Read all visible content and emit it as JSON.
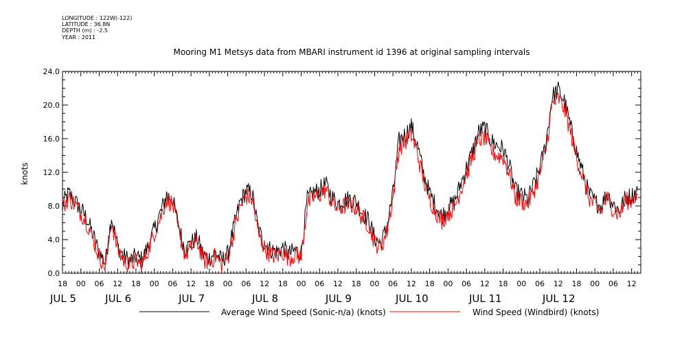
{
  "metadata": {
    "longitude": "LONGITUDE : 122W(-122)",
    "latitude": "LATITUDE : 36.8N",
    "depth": "DEPTH (m) : -2.5",
    "year": "YEAR : 2011"
  },
  "chart_data": {
    "type": "line",
    "title": "Mooring M1 Metsys data from MBARI instrument id 1396 at original sampling intervals",
    "ylabel": "knots",
    "xlabel": "",
    "ylim": [
      0,
      24
    ],
    "y_ticks": [
      "0.0",
      "4.0",
      "8.0",
      "12.0",
      "16.0",
      "20.0",
      "24.0"
    ],
    "x_unit": "hours since JUL 4 18:00 (2011)",
    "xlim": [
      0,
      189
    ],
    "x_hour_ticks": [
      {
        "h": 0,
        "label": "18"
      },
      {
        "h": 6,
        "label": "00"
      },
      {
        "h": 12,
        "label": "06"
      },
      {
        "h": 18,
        "label": "12"
      },
      {
        "h": 24,
        "label": "18"
      },
      {
        "h": 30,
        "label": "00"
      },
      {
        "h": 36,
        "label": "06"
      },
      {
        "h": 42,
        "label": "12"
      },
      {
        "h": 48,
        "label": "18"
      },
      {
        "h": 54,
        "label": "00"
      },
      {
        "h": 60,
        "label": "06"
      },
      {
        "h": 66,
        "label": "12"
      },
      {
        "h": 72,
        "label": "18"
      },
      {
        "h": 78,
        "label": "00"
      },
      {
        "h": 84,
        "label": "06"
      },
      {
        "h": 90,
        "label": "12"
      },
      {
        "h": 96,
        "label": "18"
      },
      {
        "h": 102,
        "label": "00"
      },
      {
        "h": 108,
        "label": "06"
      },
      {
        "h": 114,
        "label": "12"
      },
      {
        "h": 120,
        "label": "18"
      },
      {
        "h": 126,
        "label": "00"
      },
      {
        "h": 132,
        "label": "06"
      },
      {
        "h": 138,
        "label": "12"
      },
      {
        "h": 144,
        "label": "18"
      },
      {
        "h": 150,
        "label": "00"
      },
      {
        "h": 156,
        "label": "06"
      },
      {
        "h": 162,
        "label": "12"
      },
      {
        "h": 168,
        "label": "18"
      },
      {
        "h": 174,
        "label": "00"
      },
      {
        "h": 180,
        "label": "06"
      },
      {
        "h": 186,
        "label": "12"
      }
    ],
    "x_day_labels": [
      {
        "h": 0,
        "label": "JUL  5"
      },
      {
        "h": 18,
        "label": "JUL  6"
      },
      {
        "h": 42,
        "label": "JUL  7"
      },
      {
        "h": 66,
        "label": "JUL  8"
      },
      {
        "h": 90,
        "label": "JUL  9"
      },
      {
        "h": 114,
        "label": "JUL 10"
      },
      {
        "h": 138,
        "label": "JUL 11"
      },
      {
        "h": 162,
        "label": "JUL 12"
      }
    ],
    "series": [
      {
        "name": "Average Wind Speed (Sonic-n/a) (knots)",
        "color": "#000000",
        "x": [
          0,
          2,
          4,
          6,
          8,
          10,
          12,
          14,
          16,
          18,
          20,
          22,
          24,
          26,
          28,
          30,
          32,
          34,
          36,
          38,
          40,
          42,
          44,
          46,
          48,
          50,
          52,
          54,
          56,
          58,
          60,
          62,
          64,
          66,
          68,
          70,
          72,
          74,
          76,
          78,
          80,
          82,
          84,
          86,
          88,
          90,
          92,
          94,
          96,
          98,
          100,
          102,
          104,
          106,
          108,
          110,
          112,
          114,
          116,
          118,
          120,
          122,
          124,
          126,
          128,
          130,
          132,
          134,
          136,
          138,
          140,
          142,
          144,
          146,
          148,
          150,
          152,
          154,
          156,
          158,
          160,
          162,
          164,
          166,
          168,
          170,
          172,
          174,
          176,
          178,
          180,
          182,
          184,
          186,
          188
        ],
        "y": [
          8.2,
          9.5,
          8.6,
          7.6,
          6.5,
          4.5,
          2.5,
          1.2,
          6.8,
          3.2,
          2.0,
          1.5,
          2.0,
          1.6,
          3.2,
          5.2,
          7.2,
          9.3,
          8.8,
          5.5,
          2.8,
          3.6,
          4.2,
          2.2,
          1.8,
          2.5,
          1.5,
          2.3,
          5.5,
          8.4,
          9.8,
          9.5,
          5.2,
          3.5,
          2.8,
          2.6,
          3.0,
          2.3,
          2.7,
          2.5,
          8.8,
          9.6,
          9.9,
          10.6,
          9.1,
          8.3,
          8.7,
          8.9,
          8.5,
          7.2,
          6.3,
          4.2,
          3.5,
          5.5,
          9.5,
          15.8,
          16.5,
          17.5,
          15.2,
          11.8,
          9.5,
          8.0,
          6.8,
          7.8,
          8.4,
          10.5,
          12.5,
          14.5,
          16.8,
          17.3,
          15.8,
          15.2,
          14.8,
          12.8,
          9.8,
          9.3,
          8.8,
          10.5,
          12.5,
          15.5,
          21.0,
          21.8,
          20.5,
          17.5,
          14.5,
          12.0,
          9.5,
          8.5,
          8.0,
          9.5,
          8.2,
          7.5,
          9.0,
          9.2,
          9.8
        ]
      },
      {
        "name": "Wind Speed (Windbird) (knots)",
        "color": "#ff0000",
        "x": [
          0,
          2,
          4,
          6,
          8,
          10,
          12,
          14,
          16,
          18,
          20,
          22,
          24,
          26,
          28,
          30,
          32,
          34,
          36,
          38,
          40,
          42,
          44,
          46,
          48,
          50,
          52,
          54,
          56,
          58,
          60,
          62,
          64,
          66,
          68,
          70,
          72,
          74,
          76,
          78,
          80,
          82,
          84,
          86,
          88,
          90,
          92,
          94,
          96,
          98,
          100,
          102,
          104,
          106,
          108,
          110,
          112,
          114,
          116,
          118,
          120,
          122,
          124,
          126,
          128,
          130,
          132,
          134,
          136,
          138,
          140,
          142,
          144,
          146,
          148,
          150,
          152,
          154,
          156,
          158,
          160,
          162,
          164,
          166,
          168,
          170,
          172,
          174,
          176,
          178,
          180,
          182,
          184,
          186,
          188
        ],
        "y": [
          7.8,
          9.0,
          8.2,
          7.2,
          6.0,
          4.0,
          2.0,
          0.8,
          6.2,
          2.8,
          1.5,
          1.0,
          1.5,
          1.1,
          2.8,
          4.8,
          6.6,
          8.8,
          8.2,
          5.0,
          2.2,
          3.0,
          3.8,
          1.6,
          1.3,
          2.0,
          1.0,
          1.8,
          5.0,
          7.8,
          9.2,
          8.8,
          4.6,
          3.0,
          2.2,
          2.0,
          2.5,
          1.8,
          2.2,
          2.0,
          8.2,
          9.0,
          9.3,
          10.0,
          8.4,
          7.6,
          8.0,
          8.2,
          7.8,
          6.6,
          5.8,
          3.7,
          3.0,
          5.0,
          9.0,
          15.0,
          15.6,
          16.4,
          14.2,
          11.0,
          8.8,
          7.3,
          6.2,
          7.2,
          7.8,
          9.8,
          11.8,
          13.8,
          15.8,
          16.2,
          14.6,
          14.0,
          13.8,
          11.8,
          9.0,
          8.6,
          8.2,
          9.8,
          11.8,
          14.8,
          20.0,
          20.8,
          19.6,
          16.8,
          13.8,
          11.4,
          9.0,
          8.0,
          7.4,
          9.0,
          7.6,
          7.0,
          8.5,
          8.8,
          9.4
        ]
      }
    ]
  }
}
